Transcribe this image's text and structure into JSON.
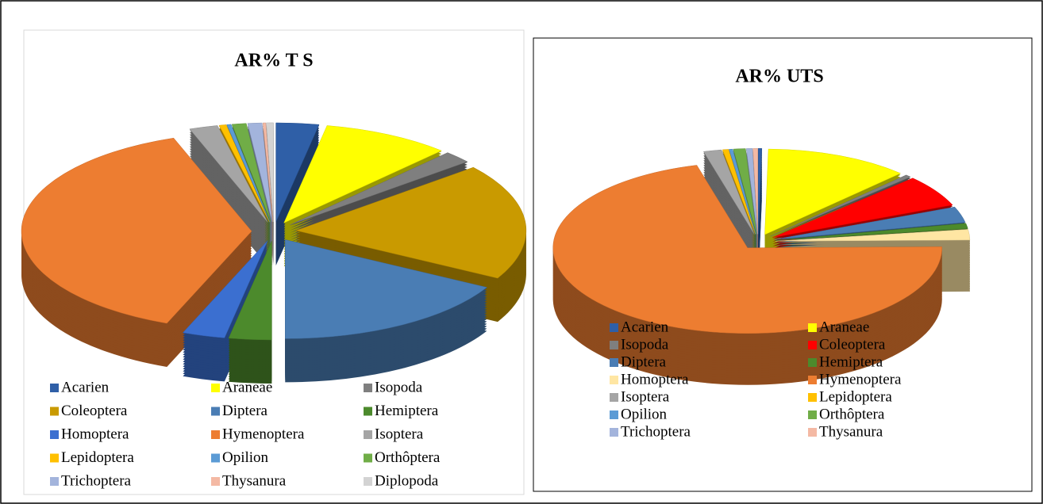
{
  "chart_data": [
    {
      "type": "pie",
      "title": "AR% T S",
      "categories": [
        "Acarien",
        "Araneae",
        "Isopoda",
        "Coleoptera",
        "Diptera",
        "Hemiptera",
        "Homoptera",
        "Hymenoptera",
        "Isoptera",
        "Lepidoptera",
        "Opilion",
        "Orthôptera",
        "Trichoptera",
        "Thysanura",
        "Diplopoda"
      ],
      "values": [
        3,
        9,
        2,
        19,
        17,
        3,
        3,
        38.5,
        2,
        0.5,
        0.3,
        1,
        1,
        0.2,
        0.5
      ],
      "colors": [
        "#2f5fa7",
        "#ffff00",
        "#7f7f7f",
        "#c99a00",
        "#4a7db4",
        "#4c8a2c",
        "#3b6fd0",
        "#ed7d31",
        "#a5a5a5",
        "#ffc000",
        "#5b9bd5",
        "#70ad47",
        "#a3b4dc",
        "#f4b9a4",
        "#d3d3d3"
      ]
    },
    {
      "type": "pie",
      "title": "AR% UTS",
      "categories": [
        "Acarien",
        "Araneae",
        "Isopoda",
        "Coleoptera",
        "Diptera",
        "Hemiptera",
        "Homoptera",
        "Hymenoptera",
        "Isoptera",
        "Lepidoptera",
        "Opilion",
        "Orthôptera",
        "Trichoptera",
        "Thysanura"
      ],
      "values": [
        0.3,
        12,
        0.5,
        6,
        3,
        1,
        2,
        71,
        1.5,
        0.5,
        0.3,
        1,
        0.5,
        0.4
      ],
      "colors": [
        "#2f5fa7",
        "#ffff00",
        "#7f7f7f",
        "#ff0000",
        "#4a7db4",
        "#4c8a2c",
        "#ffe6a3",
        "#ed7d31",
        "#a5a5a5",
        "#ffc000",
        "#5b9bd5",
        "#70ad47",
        "#a3b4dc",
        "#f4b9a4"
      ]
    }
  ]
}
